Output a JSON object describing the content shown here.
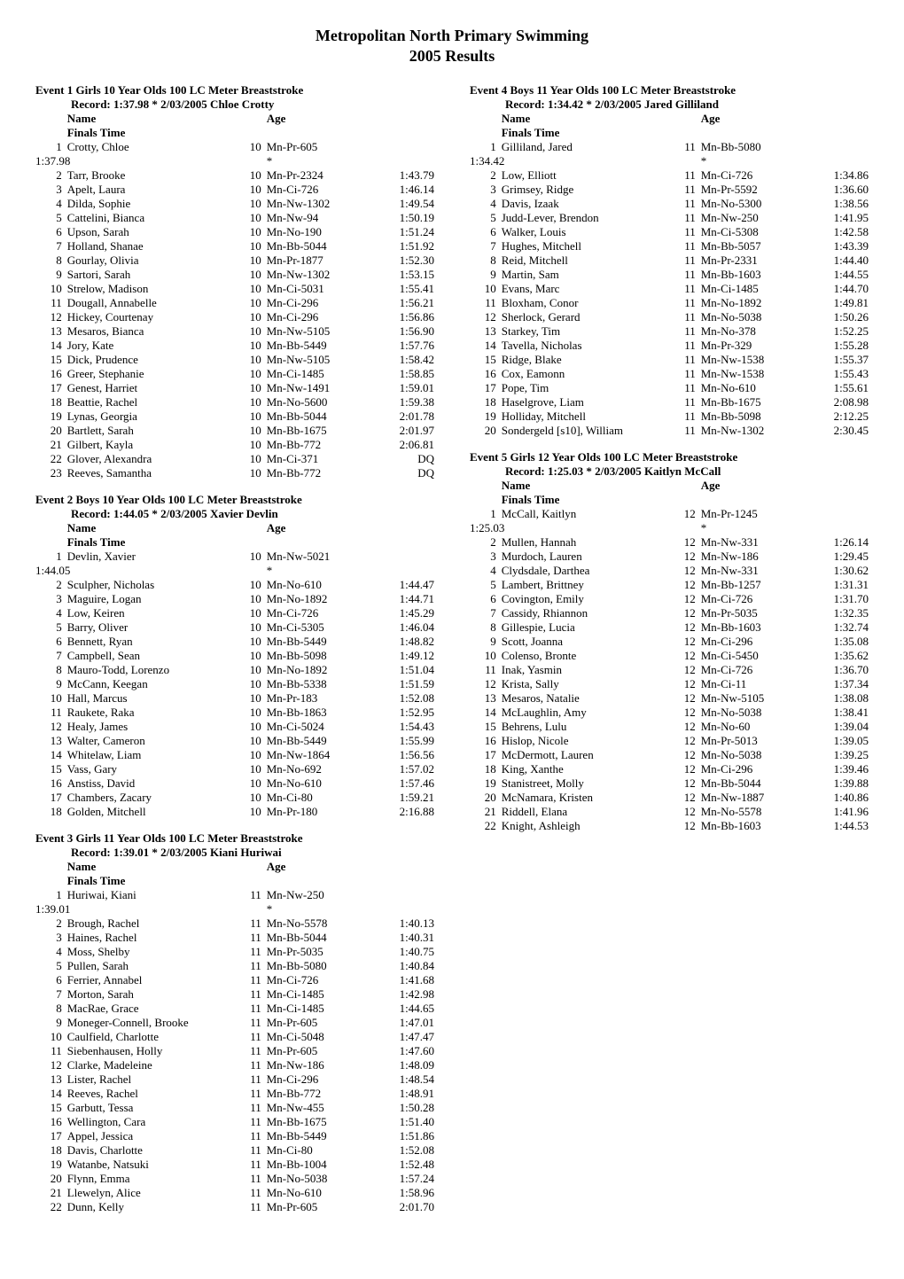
{
  "page": {
    "title": "Metropolitan North Primary Swimming",
    "subtitle": "2005 Results"
  },
  "labels": {
    "name": "Name",
    "age": "Age",
    "finals": "Finals Time",
    "record": "Record:"
  },
  "events": [
    {
      "title": "Event 1  Girls 10 Year Olds 100 LC Meter Breaststroke",
      "record": "1:37.98 * 2/03/2005  Chloe Crotty",
      "recordTime": "1:37.98",
      "first": {
        "place": "1",
        "name": "Crotty, Chloe",
        "age": "10",
        "team": "Mn-Pr-605",
        "time": ""
      },
      "rows": [
        {
          "place": "2",
          "name": "Tarr, Brooke",
          "age": "10",
          "team": "Mn-Pr-2324",
          "time": "1:43.79"
        },
        {
          "place": "3",
          "name": "Apelt, Laura",
          "age": "10",
          "team": "Mn-Ci-726",
          "time": "1:46.14"
        },
        {
          "place": "4",
          "name": "Dilda, Sophie",
          "age": "10",
          "team": "Mn-Nw-1302",
          "time": "1:49.54"
        },
        {
          "place": "5",
          "name": "Cattelini, Bianca",
          "age": "10",
          "team": "Mn-Nw-94",
          "time": "1:50.19"
        },
        {
          "place": "6",
          "name": "Upson, Sarah",
          "age": "10",
          "team": "Mn-No-190",
          "time": "1:51.24"
        },
        {
          "place": "7",
          "name": "Holland, Shanae",
          "age": "10",
          "team": "Mn-Bb-5044",
          "time": "1:51.92"
        },
        {
          "place": "8",
          "name": "Gourlay, Olivia",
          "age": "10",
          "team": "Mn-Pr-1877",
          "time": "1:52.30"
        },
        {
          "place": "9",
          "name": "Sartori, Sarah",
          "age": "10",
          "team": "Mn-Nw-1302",
          "time": "1:53.15"
        },
        {
          "place": "10",
          "name": "Strelow, Madison",
          "age": "10",
          "team": "Mn-Ci-5031",
          "time": "1:55.41"
        },
        {
          "place": "11",
          "name": "Dougall, Annabelle",
          "age": "10",
          "team": "Mn-Ci-296",
          "time": "1:56.21"
        },
        {
          "place": "12",
          "name": "Hickey, Courtenay",
          "age": "10",
          "team": "Mn-Ci-296",
          "time": "1:56.86"
        },
        {
          "place": "13",
          "name": "Mesaros, Bianca",
          "age": "10",
          "team": "Mn-Nw-5105",
          "time": "1:56.90"
        },
        {
          "place": "14",
          "name": "Jory, Kate",
          "age": "10",
          "team": "Mn-Bb-5449",
          "time": "1:57.76"
        },
        {
          "place": "15",
          "name": "Dick, Prudence",
          "age": "10",
          "team": "Mn-Nw-5105",
          "time": "1:58.42"
        },
        {
          "place": "16",
          "name": "Greer, Stephanie",
          "age": "10",
          "team": "Mn-Ci-1485",
          "time": "1:58.85"
        },
        {
          "place": "17",
          "name": "Genest, Harriet",
          "age": "10",
          "team": "Mn-Nw-1491",
          "time": "1:59.01"
        },
        {
          "place": "18",
          "name": "Beattie, Rachel",
          "age": "10",
          "team": "Mn-No-5600",
          "time": "1:59.38"
        },
        {
          "place": "19",
          "name": "Lynas, Georgia",
          "age": "10",
          "team": "Mn-Bb-5044",
          "time": "2:01.78"
        },
        {
          "place": "20",
          "name": "Bartlett, Sarah",
          "age": "10",
          "team": "Mn-Bb-1675",
          "time": "2:01.97"
        },
        {
          "place": "21",
          "name": "Gilbert, Kayla",
          "age": "10",
          "team": "Mn-Bb-772",
          "time": "2:06.81"
        },
        {
          "place": "22",
          "name": "Glover, Alexandra",
          "age": "10",
          "team": "Mn-Ci-371",
          "time": "DQ"
        },
        {
          "place": "23",
          "name": "Reeves, Samantha",
          "age": "10",
          "team": "Mn-Bb-772",
          "time": "DQ"
        }
      ]
    },
    {
      "title": "Event 2  Boys 10 Year Olds 100 LC Meter Breaststroke",
      "record": "1:44.05 * 2/03/2005  Xavier Devlin",
      "recordTime": "1:44.05",
      "first": {
        "place": "1",
        "name": "Devlin, Xavier",
        "age": "10",
        "team": "Mn-Nw-5021",
        "time": ""
      },
      "rows": [
        {
          "place": "2",
          "name": "Sculpher, Nicholas",
          "age": "10",
          "team": "Mn-No-610",
          "time": "1:44.47"
        },
        {
          "place": "3",
          "name": "Maguire, Logan",
          "age": "10",
          "team": "Mn-No-1892",
          "time": "1:44.71"
        },
        {
          "place": "4",
          "name": "Low, Keiren",
          "age": "10",
          "team": "Mn-Ci-726",
          "time": "1:45.29"
        },
        {
          "place": "5",
          "name": "Barry, Oliver",
          "age": "10",
          "team": "Mn-Ci-5305",
          "time": "1:46.04"
        },
        {
          "place": "6",
          "name": "Bennett, Ryan",
          "age": "10",
          "team": "Mn-Bb-5449",
          "time": "1:48.82"
        },
        {
          "place": "7",
          "name": "Campbell, Sean",
          "age": "10",
          "team": "Mn-Bb-5098",
          "time": "1:49.12"
        },
        {
          "place": "8",
          "name": "Mauro-Todd, Lorenzo",
          "age": "10",
          "team": "Mn-No-1892",
          "time": "1:51.04"
        },
        {
          "place": "9",
          "name": "McCann, Keegan",
          "age": "10",
          "team": "Mn-Bb-5338",
          "time": "1:51.59"
        },
        {
          "place": "10",
          "name": "Hall, Marcus",
          "age": "10",
          "team": "Mn-Pr-183",
          "time": "1:52.08"
        },
        {
          "place": "11",
          "name": "Raukete, Raka",
          "age": "10",
          "team": "Mn-Bb-1863",
          "time": "1:52.95"
        },
        {
          "place": "12",
          "name": "Healy, James",
          "age": "10",
          "team": "Mn-Ci-5024",
          "time": "1:54.43"
        },
        {
          "place": "13",
          "name": "Walter, Cameron",
          "age": "10",
          "team": "Mn-Bb-5449",
          "time": "1:55.99"
        },
        {
          "place": "14",
          "name": "Whitelaw, Liam",
          "age": "10",
          "team": "Mn-Nw-1864",
          "time": "1:56.56"
        },
        {
          "place": "15",
          "name": "Vass, Gary",
          "age": "10",
          "team": "Mn-No-692",
          "time": "1:57.02"
        },
        {
          "place": "16",
          "name": "Anstiss, David",
          "age": "10",
          "team": "Mn-No-610",
          "time": "1:57.46"
        },
        {
          "place": "17",
          "name": "Chambers, Zacary",
          "age": "10",
          "team": "Mn-Ci-80",
          "time": "1:59.21"
        },
        {
          "place": "18",
          "name": "Golden, Mitchell",
          "age": "10",
          "team": "Mn-Pr-180",
          "time": "2:16.88"
        }
      ]
    },
    {
      "title": "Event 3  Girls 11 Year Olds 100 LC Meter Breaststroke",
      "record": "1:39.01 * 2/03/2005  Kiani Huriwai",
      "recordTime": "1:39.01",
      "first": {
        "place": "1",
        "name": "Huriwai, Kiani",
        "age": "11",
        "team": "Mn-Nw-250",
        "time": ""
      },
      "rows": [
        {
          "place": "2",
          "name": "Brough, Rachel",
          "age": "11",
          "team": "Mn-No-5578",
          "time": "1:40.13"
        },
        {
          "place": "3",
          "name": "Haines, Rachel",
          "age": "11",
          "team": "Mn-Bb-5044",
          "time": "1:40.31"
        },
        {
          "place": "4",
          "name": "Moss, Shelby",
          "age": "11",
          "team": "Mn-Pr-5035",
          "time": "1:40.75"
        },
        {
          "place": "5",
          "name": "Pullen, Sarah",
          "age": "11",
          "team": "Mn-Bb-5080",
          "time": "1:40.84"
        },
        {
          "place": "6",
          "name": "Ferrier, Annabel",
          "age": "11",
          "team": "Mn-Ci-726",
          "time": "1:41.68"
        },
        {
          "place": "7",
          "name": "Morton, Sarah",
          "age": "11",
          "team": "Mn-Ci-1485",
          "time": "1:42.98"
        },
        {
          "place": "8",
          "name": "MacRae, Grace",
          "age": "11",
          "team": "Mn-Ci-1485",
          "time": "1:44.65"
        },
        {
          "place": "9",
          "name": "Moneger-Connell, Brooke",
          "age": "11",
          "team": "Mn-Pr-605",
          "time": "1:47.01"
        },
        {
          "place": "10",
          "name": "Caulfield, Charlotte",
          "age": "11",
          "team": "Mn-Ci-5048",
          "time": "1:47.47"
        },
        {
          "place": "11",
          "name": "Siebenhausen, Holly",
          "age": "11",
          "team": "Mn-Pr-605",
          "time": "1:47.60"
        },
        {
          "place": "12",
          "name": "Clarke, Madeleine",
          "age": "11",
          "team": "Mn-Nw-186",
          "time": "1:48.09"
        },
        {
          "place": "13",
          "name": "Lister, Rachel",
          "age": "11",
          "team": "Mn-Ci-296",
          "time": "1:48.54"
        },
        {
          "place": "14",
          "name": "Reeves, Rachel",
          "age": "11",
          "team": "Mn-Bb-772",
          "time": "1:48.91"
        },
        {
          "place": "15",
          "name": "Garbutt, Tessa",
          "age": "11",
          "team": "Mn-Nw-455",
          "time": "1:50.28"
        },
        {
          "place": "16",
          "name": "Wellington, Cara",
          "age": "11",
          "team": "Mn-Bb-1675",
          "time": "1:51.40"
        },
        {
          "place": "17",
          "name": "Appel, Jessica",
          "age": "11",
          "team": "Mn-Bb-5449",
          "time": "1:51.86"
        },
        {
          "place": "18",
          "name": "Davis, Charlotte",
          "age": "11",
          "team": "Mn-Ci-80",
          "time": "1:52.08"
        },
        {
          "place": "19",
          "name": "Watanbe, Natsuki",
          "age": "11",
          "team": "Mn-Bb-1004",
          "time": "1:52.48"
        },
        {
          "place": "20",
          "name": "Flynn, Emma",
          "age": "11",
          "team": "Mn-No-5038",
          "time": "1:57.24"
        },
        {
          "place": "21",
          "name": "Llewelyn, Alice",
          "age": "11",
          "team": "Mn-No-610",
          "time": "1:58.96"
        },
        {
          "place": "22",
          "name": "Dunn, Kelly",
          "age": "11",
          "team": "Mn-Pr-605",
          "time": "2:01.70"
        }
      ]
    },
    {
      "title": "Event 4  Boys 11 Year Olds 100 LC Meter Breaststroke",
      "record": "1:34.42 * 2/03/2005  Jared Gilliland",
      "recordTime": "1:34.42",
      "first": {
        "place": "1",
        "name": "Gilliland, Jared",
        "age": "11",
        "team": "Mn-Bb-5080",
        "time": ""
      },
      "rows": [
        {
          "place": "2",
          "name": "Low, Elliott",
          "age": "11",
          "team": "Mn-Ci-726",
          "time": "1:34.86"
        },
        {
          "place": "3",
          "name": "Grimsey, Ridge",
          "age": "11",
          "team": "Mn-Pr-5592",
          "time": "1:36.60"
        },
        {
          "place": "4",
          "name": "Davis, Izaak",
          "age": "11",
          "team": "Mn-No-5300",
          "time": "1:38.56"
        },
        {
          "place": "5",
          "name": "Judd-Lever, Brendon",
          "age": "11",
          "team": "Mn-Nw-250",
          "time": "1:41.95"
        },
        {
          "place": "6",
          "name": "Walker, Louis",
          "age": "11",
          "team": "Mn-Ci-5308",
          "time": "1:42.58"
        },
        {
          "place": "7",
          "name": "Hughes, Mitchell",
          "age": "11",
          "team": "Mn-Bb-5057",
          "time": "1:43.39"
        },
        {
          "place": "8",
          "name": "Reid, Mitchell",
          "age": "11",
          "team": "Mn-Pr-2331",
          "time": "1:44.40"
        },
        {
          "place": "9",
          "name": "Martin, Sam",
          "age": "11",
          "team": "Mn-Bb-1603",
          "time": "1:44.55"
        },
        {
          "place": "10",
          "name": "Evans, Marc",
          "age": "11",
          "team": "Mn-Ci-1485",
          "time": "1:44.70"
        },
        {
          "place": "11",
          "name": "Bloxham, Conor",
          "age": "11",
          "team": "Mn-No-1892",
          "time": "1:49.81"
        },
        {
          "place": "12",
          "name": "Sherlock, Gerard",
          "age": "11",
          "team": "Mn-No-5038",
          "time": "1:50.26"
        },
        {
          "place": "13",
          "name": "Starkey, Tim",
          "age": "11",
          "team": "Mn-No-378",
          "time": "1:52.25"
        },
        {
          "place": "14",
          "name": "Tavella, Nicholas",
          "age": "11",
          "team": "Mn-Pr-329",
          "time": "1:55.28"
        },
        {
          "place": "15",
          "name": "Ridge, Blake",
          "age": "11",
          "team": "Mn-Nw-1538",
          "time": "1:55.37"
        },
        {
          "place": "16",
          "name": "Cox, Eamonn",
          "age": "11",
          "team": "Mn-Nw-1538",
          "time": "1:55.43"
        },
        {
          "place": "17",
          "name": "Pope, Tim",
          "age": "11",
          "team": "Mn-No-610",
          "time": "1:55.61"
        },
        {
          "place": "18",
          "name": "Haselgrove, Liam",
          "age": "11",
          "team": "Mn-Bb-1675",
          "time": "2:08.98"
        },
        {
          "place": "19",
          "name": "Holliday, Mitchell",
          "age": "11",
          "team": "Mn-Bb-5098",
          "time": "2:12.25"
        },
        {
          "place": "20",
          "name": "Sondergeld [s10], William",
          "age": "11",
          "team": "Mn-Nw-1302",
          "time": "2:30.45"
        }
      ]
    },
    {
      "title": "Event 5  Girls 12 Year Olds 100 LC Meter Breaststroke",
      "record": "1:25.03 * 2/03/2005  Kaitlyn McCall",
      "recordTime": "1:25.03",
      "first": {
        "place": "1",
        "name": "McCall, Kaitlyn",
        "age": "12",
        "team": "Mn-Pr-1245",
        "time": ""
      },
      "rows": [
        {
          "place": "2",
          "name": "Mullen, Hannah",
          "age": "12",
          "team": "Mn-Nw-331",
          "time": "1:26.14"
        },
        {
          "place": "3",
          "name": "Murdoch, Lauren",
          "age": "12",
          "team": "Mn-Nw-186",
          "time": "1:29.45"
        },
        {
          "place": "4",
          "name": "Clydsdale, Darthea",
          "age": "12",
          "team": "Mn-Nw-331",
          "time": "1:30.62"
        },
        {
          "place": "5",
          "name": "Lambert, Brittney",
          "age": "12",
          "team": "Mn-Bb-1257",
          "time": "1:31.31"
        },
        {
          "place": "6",
          "name": "Covington, Emily",
          "age": "12",
          "team": "Mn-Ci-726",
          "time": "1:31.70"
        },
        {
          "place": "7",
          "name": "Cassidy, Rhiannon",
          "age": "12",
          "team": "Mn-Pr-5035",
          "time": "1:32.35"
        },
        {
          "place": "8",
          "name": "Gillespie, Lucia",
          "age": "12",
          "team": "Mn-Bb-1603",
          "time": "1:32.74"
        },
        {
          "place": "9",
          "name": "Scott, Joanna",
          "age": "12",
          "team": "Mn-Ci-296",
          "time": "1:35.08"
        },
        {
          "place": "10",
          "name": "Colenso, Bronte",
          "age": "12",
          "team": "Mn-Ci-5450",
          "time": "1:35.62"
        },
        {
          "place": "11",
          "name": "Inak, Yasmin",
          "age": "12",
          "team": "Mn-Ci-726",
          "time": "1:36.70"
        },
        {
          "place": "12",
          "name": "Krista, Sally",
          "age": "12",
          "team": "Mn-Ci-11",
          "time": "1:37.34"
        },
        {
          "place": "13",
          "name": "Mesaros, Natalie",
          "age": "12",
          "team": "Mn-Nw-5105",
          "time": "1:38.08"
        },
        {
          "place": "14",
          "name": "McLaughlin, Amy",
          "age": "12",
          "team": "Mn-No-5038",
          "time": "1:38.41"
        },
        {
          "place": "15",
          "name": "Behrens, Lulu",
          "age": "12",
          "team": "Mn-No-60",
          "time": "1:39.04"
        },
        {
          "place": "16",
          "name": "Hislop, Nicole",
          "age": "12",
          "team": "Mn-Pr-5013",
          "time": "1:39.05"
        },
        {
          "place": "17",
          "name": "McDermott, Lauren",
          "age": "12",
          "team": "Mn-No-5038",
          "time": "1:39.25"
        },
        {
          "place": "18",
          "name": "King, Xanthe",
          "age": "12",
          "team": "Mn-Ci-296",
          "time": "1:39.46"
        },
        {
          "place": "19",
          "name": "Stanistreet, Molly",
          "age": "12",
          "team": "Mn-Bb-5044",
          "time": "1:39.88"
        },
        {
          "place": "20",
          "name": "McNamara, Kristen",
          "age": "12",
          "team": "Mn-Nw-1887",
          "time": "1:40.86"
        },
        {
          "place": "21",
          "name": "Riddell, Elana",
          "age": "12",
          "team": "Mn-No-5578",
          "time": "1:41.96"
        },
        {
          "place": "22",
          "name": "Knight, Ashleigh",
          "age": "12",
          "team": "Mn-Bb-1603",
          "time": "1:44.53"
        }
      ]
    }
  ]
}
